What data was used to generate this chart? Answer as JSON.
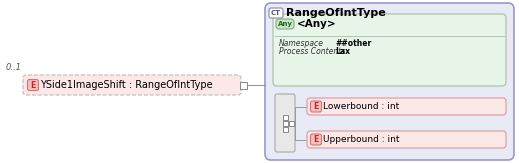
{
  "bg_color": "#ffffff",
  "main_element_label": "YSide1ImageShift : RangeOfIntType",
  "main_element_multiplicity": "0..1",
  "ct_box": {
    "title": "RangeOfIntType",
    "bg_color": "#e8eaf6",
    "border_color": "#9999cc",
    "any_label": "<Any>",
    "any_bg": "#e8f5e9",
    "any_border": "#aabbaa",
    "namespace_label": "Namespace",
    "namespace_value": "##other",
    "process_label": "Process Contents",
    "process_value": "Lax",
    "elements": [
      {
        "label": "Lowerbound : int"
      },
      {
        "label": "Upperbound : int"
      }
    ]
  },
  "colors": {
    "e_badge_bg": "#f5c0c0",
    "e_badge_border": "#cc7777",
    "e_badge_text": "#cc2222",
    "e_elem_bg": "#fde8e8",
    "e_elem_border": "#dd9999",
    "main_box_bg": "#fde8e8",
    "main_box_border": "#bbbbbb",
    "ct_badge_bg": "#ffffff",
    "ct_badge_border": "#8888bb",
    "ct_badge_text": "#555588",
    "any_badge_bg": "#c8e6c9",
    "any_badge_border": "#88aa88",
    "any_badge_text": "#226622",
    "seq_box_bg": "#e8e8e8",
    "seq_box_border": "#aaaaaa",
    "line_color": "#999999",
    "text_dark": "#000000",
    "text_label": "#333333",
    "multiplicity_color": "#555555"
  }
}
